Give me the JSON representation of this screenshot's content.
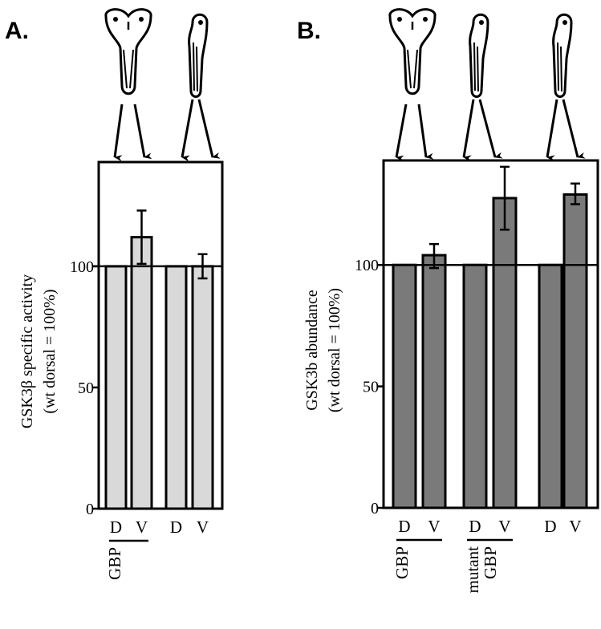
{
  "chart_data": [
    {
      "panel_label": "A.",
      "type": "bar",
      "ylabel": "GSK3β specific activity",
      "ylabel2": "(wt dorsal = 100%)",
      "ylim": [
        0,
        143
      ],
      "yticks": [
        0,
        50,
        100
      ],
      "reference_line": 100,
      "bar_color": "#d9d9d9",
      "categories": [
        "D",
        "V",
        "D",
        "V"
      ],
      "values": [
        100,
        112,
        100,
        100
      ],
      "errors_low": [
        null,
        101,
        null,
        95
      ],
      "errors_high": [
        null,
        123,
        null,
        105
      ],
      "groups": [
        {
          "label": "GBP",
          "lines": [
            "GBP"
          ],
          "bars": [
            0,
            1
          ]
        }
      ],
      "embryos": [
        "dorsal-injected",
        "uninjected"
      ]
    },
    {
      "panel_label": "B.",
      "type": "bar",
      "ylabel": "GSK3b abundance",
      "ylabel2": "(wt dorsal = 100%)",
      "ylim": [
        0,
        143
      ],
      "yticks": [
        0,
        50,
        100
      ],
      "reference_line": 100,
      "bar_color": "#7a7a7a",
      "categories": [
        "D",
        "V",
        "D",
        "V",
        "D",
        "V"
      ],
      "values": [
        100,
        104,
        100,
        127.5,
        100,
        129
      ],
      "errors_low": [
        null,
        98.7,
        null,
        114.5,
        null,
        125
      ],
      "errors_high": [
        null,
        108.6,
        null,
        140.4,
        null,
        133.5
      ],
      "groups": [
        {
          "label": "GBP",
          "lines": [
            "GBP"
          ],
          "bars": [
            0,
            1
          ]
        },
        {
          "label": "mutant GBP",
          "lines": [
            "mutant",
            "GBP"
          ],
          "bars": [
            2,
            3
          ]
        }
      ],
      "embryos": [
        "dorsal-injected",
        "uninjected",
        "uninjected"
      ]
    }
  ]
}
